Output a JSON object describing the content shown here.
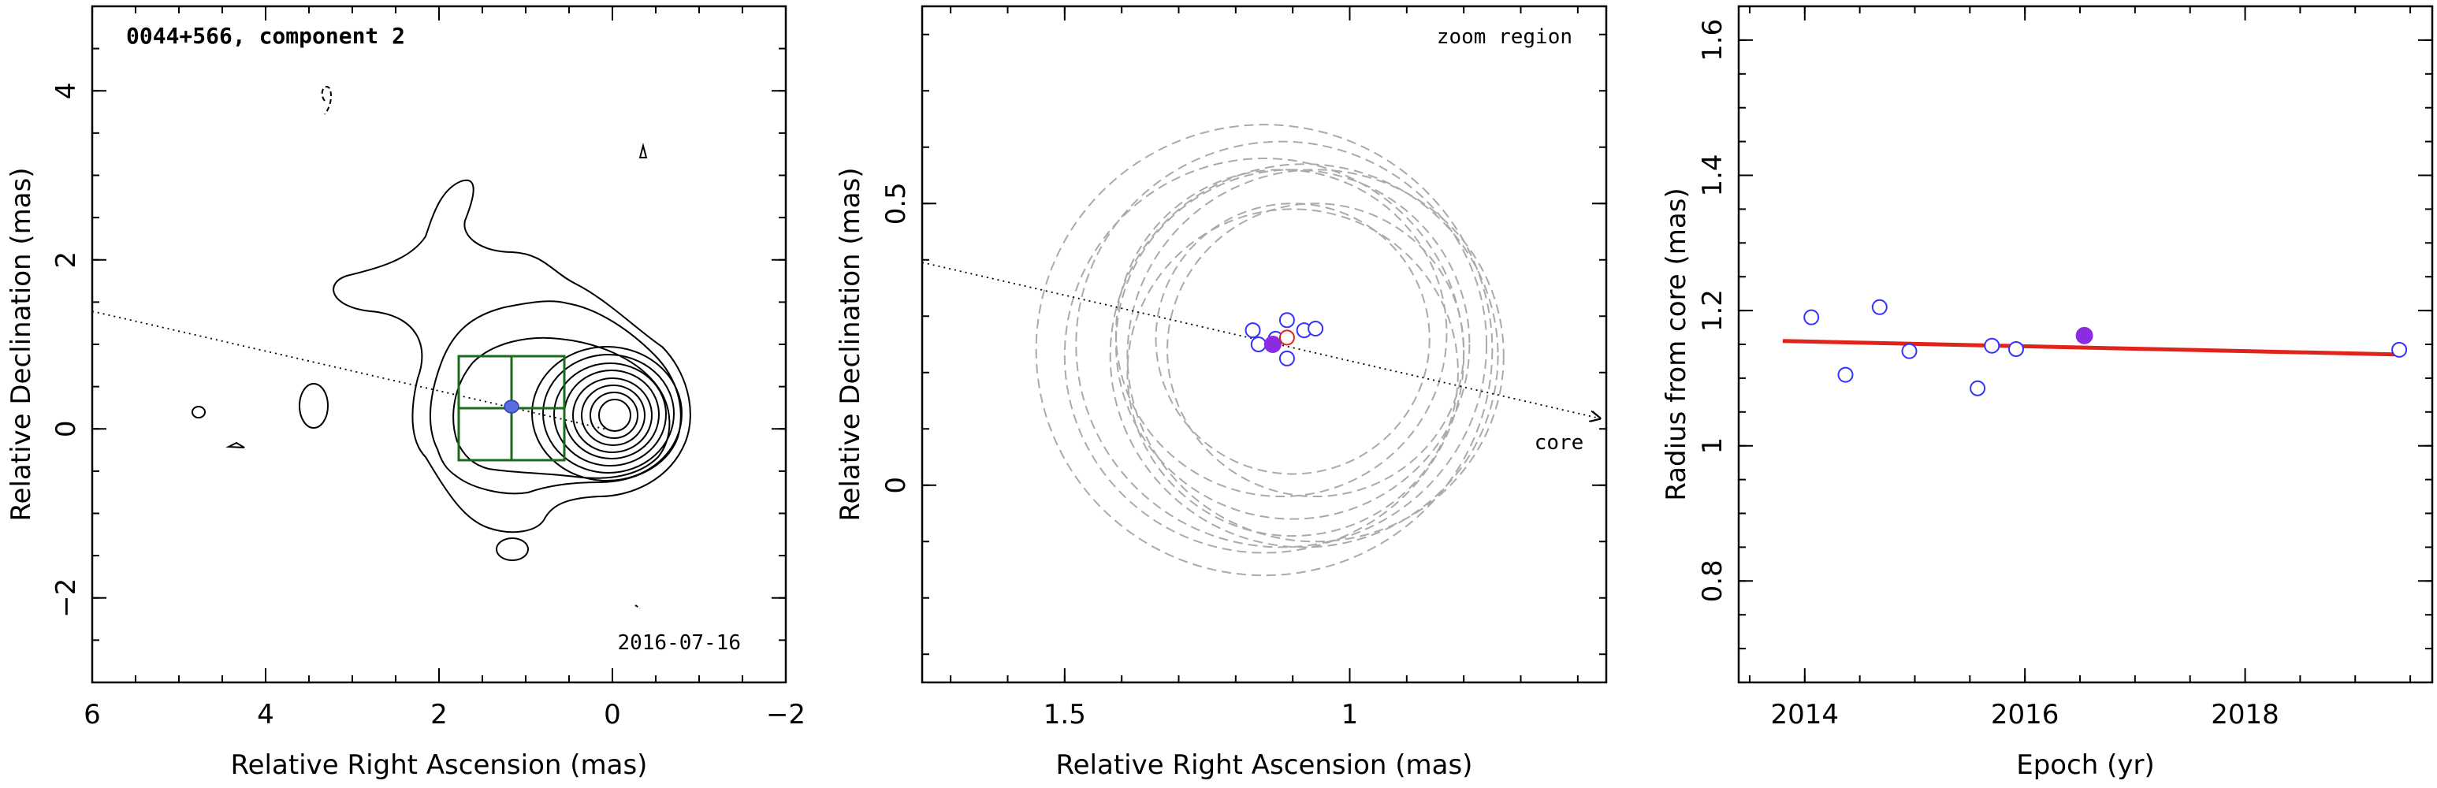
{
  "chart_data": [
    {
      "type": "contour",
      "title": "0044+566, component 2",
      "xlabel": "Relative Right Ascension (mas)",
      "ylabel": "Relative Declination (mas)",
      "xlim": [
        6,
        -2
      ],
      "ylim": [
        -3,
        5
      ],
      "xticks": [
        6,
        4,
        2,
        0,
        -2
      ],
      "yticks": [
        -2,
        0,
        2,
        4
      ],
      "xtick_labels": [
        "6",
        "4",
        "2",
        "0",
        "−2"
      ],
      "ytick_labels": [
        "−2",
        "0",
        "2",
        "4"
      ],
      "date_label": "2016-07-16",
      "core_position": [
        0.05,
        0.15
      ],
      "component_position": [
        1.1,
        0.27
      ],
      "zoom_box": {
        "x_range": [
          0.55,
          1.65
        ],
        "y_range": [
          -0.35,
          0.85
        ]
      },
      "jet_axis_line": {
        "from": [
          6,
          1.4
        ],
        "to": [
          0,
          0.0
        ]
      },
      "contour_colors": {
        "contour": "#000000",
        "zoom_box": "#1a6b1a",
        "component": "#3a4fd6"
      }
    },
    {
      "type": "scatter",
      "title": "zoom region",
      "xlabel": "Relative Right Ascension (mas)",
      "ylabel": "Relative Declination (mas)",
      "xlim": [
        1.75,
        0.55
      ],
      "ylim": [
        -0.35,
        0.85
      ],
      "xticks": [
        1.5,
        1.0
      ],
      "yticks": [
        0,
        0.5
      ],
      "xtick_labels": [
        "1.5",
        "1"
      ],
      "ytick_labels": [
        "0",
        "0.5"
      ],
      "core_label": "core",
      "series": [
        {
          "marker": "open-circle",
          "color": "#3333ff",
          "x": [
            1.17,
            1.16,
            1.13,
            1.11,
            1.11,
            1.08,
            1.06
          ],
          "y": [
            0.275,
            0.25,
            0.26,
            0.225,
            0.293,
            0.275,
            0.278
          ]
        },
        {
          "marker": "filled-circle",
          "color": "#8b2be2",
          "x": [
            1.135
          ],
          "y": [
            0.25
          ]
        },
        {
          "marker": "open-circle",
          "color": "#e0241b",
          "x": [
            1.11
          ],
          "y": [
            0.262
          ]
        }
      ],
      "circles": [
        {
          "cx": 1.15,
          "cy": 0.24,
          "r": 0.4
        },
        {
          "cx": 1.12,
          "cy": 0.25,
          "r": 0.36
        },
        {
          "cx": 1.08,
          "cy": 0.23,
          "r": 0.34
        },
        {
          "cx": 1.1,
          "cy": 0.25,
          "r": 0.31
        },
        {
          "cx": 1.06,
          "cy": 0.23,
          "r": 0.33
        },
        {
          "cx": 1.12,
          "cy": 0.27,
          "r": 0.29
        },
        {
          "cx": 1.06,
          "cy": 0.24,
          "r": 0.26
        },
        {
          "cx": 1.15,
          "cy": 0.23,
          "r": 0.35
        },
        {
          "cx": 1.1,
          "cy": 0.2,
          "r": 0.29
        },
        {
          "cx": 1.1,
          "cy": 0.26,
          "r": 0.24
        }
      ],
      "circle_color": "#aaaaaa",
      "jet_axis_line": {
        "from": [
          1.75,
          0.4
        ],
        "to": [
          0.55,
          0.125
        ]
      }
    },
    {
      "type": "scatter",
      "xlabel": "Epoch (yr)",
      "ylabel": "Radius from core (mas)",
      "xlim": [
        2013.4,
        2019.7
      ],
      "ylim": [
        0.65,
        1.65
      ],
      "xticks": [
        2014,
        2016,
        2018
      ],
      "yticks": [
        0.8,
        1.0,
        1.2,
        1.4,
        1.6
      ],
      "xtick_labels": [
        "2014",
        "2016",
        "2018"
      ],
      "ytick_labels": [
        "0.8",
        "1",
        "1.2",
        "1.4",
        "1.6"
      ],
      "series": [
        {
          "marker": "open-circle",
          "color": "#3333ff",
          "x": [
            2014.06,
            2014.37,
            2014.68,
            2014.95,
            2015.57,
            2015.7,
            2015.92,
            2019.4
          ],
          "y": [
            1.19,
            1.105,
            1.205,
            1.14,
            1.085,
            1.148,
            1.143,
            1.142
          ]
        },
        {
          "marker": "filled-circle",
          "color": "#8b2be2",
          "x": [
            2016.54
          ],
          "y": [
            1.163
          ]
        }
      ],
      "fit_line": {
        "color": "#e0241b",
        "x": [
          2013.8,
          2019.4
        ],
        "y": [
          1.155,
          1.135
        ]
      }
    }
  ]
}
